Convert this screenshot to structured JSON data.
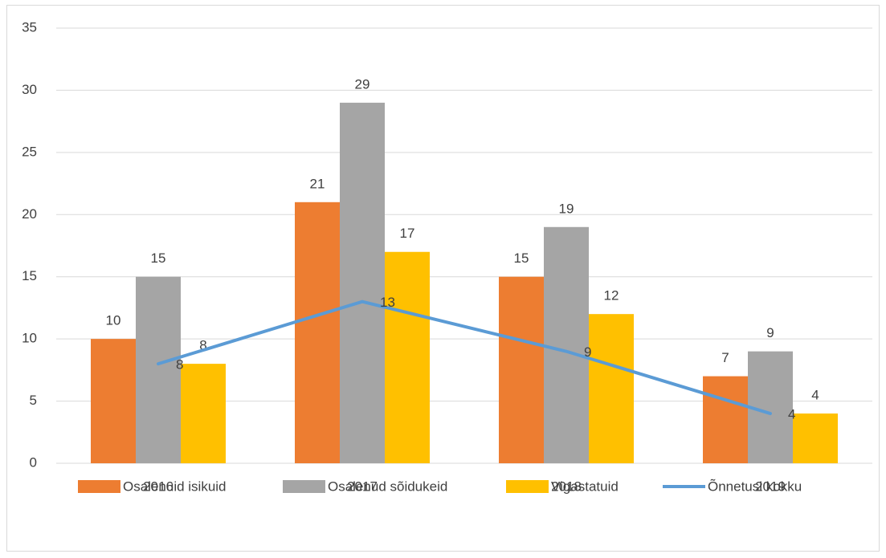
{
  "chart_data": {
    "type": "bar",
    "categories": [
      "2016",
      "2017",
      "2018",
      "2019"
    ],
    "series": [
      {
        "name": "Osalenuid isikuid",
        "color": "#ED7D31",
        "values": [
          10,
          21,
          15,
          7
        ]
      },
      {
        "name": "Osalenud sõidukeid",
        "color": "#A5A5A5",
        "values": [
          15,
          29,
          19,
          9
        ]
      },
      {
        "name": "Vigastatuid",
        "color": "#FFC000",
        "values": [
          8,
          17,
          12,
          4
        ]
      },
      {
        "name": "Õnnetusi kokku",
        "color": "#5B9BD5",
        "type": "line",
        "values": [
          8,
          13,
          9,
          4
        ]
      }
    ],
    "ylim": [
      0,
      35
    ],
    "yticks": [
      0,
      5,
      10,
      15,
      20,
      25,
      30,
      35
    ],
    "grid": true,
    "legend": "bottom"
  }
}
